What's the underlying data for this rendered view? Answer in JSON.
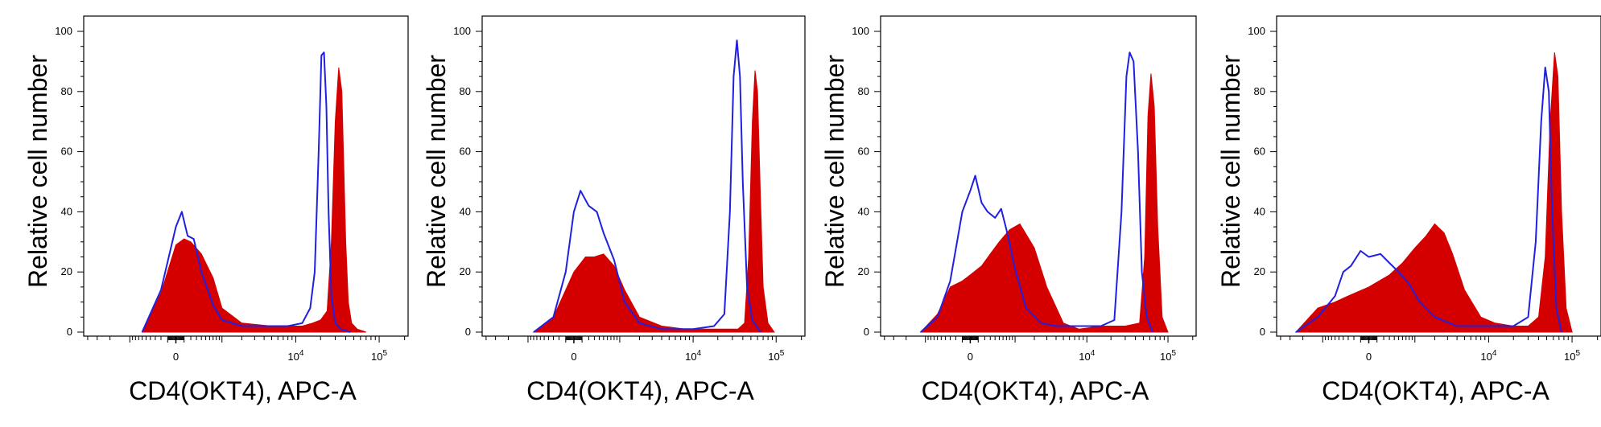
{
  "chart_data": [
    {
      "type": "area",
      "ylabel": "Relative cell number",
      "xlabel": "CD4(OKT4), APC-A",
      "x_scale": "biexponential",
      "yticks": [
        0,
        20,
        40,
        60,
        80,
        100
      ],
      "xticks": [
        {
          "label": "0",
          "value": 0
        },
        {
          "label": "10",
          "sup": "4",
          "value": 10000
        },
        {
          "label": "10",
          "sup": "5",
          "value": 100000
        }
      ],
      "ylim": [
        0,
        105
      ],
      "series": [
        {
          "color": "#d40000",
          "fill": true,
          "x": [
            -600,
            -200,
            0,
            100,
            200,
            400,
            700,
            1000,
            2000,
            5000,
            8000,
            12000,
            16000,
            20000,
            24000,
            27000,
            30000,
            33000,
            36000,
            38000,
            40000,
            43000,
            47000,
            55000,
            70000
          ],
          "y": [
            0,
            13,
            29,
            31,
            30,
            26,
            18,
            8,
            3,
            2,
            2,
            2,
            3,
            4,
            7,
            30,
            70,
            88,
            80,
            55,
            30,
            10,
            3,
            1,
            0
          ]
        },
        {
          "color": "#2020e0",
          "fill": false,
          "x": [
            -600,
            -200,
            0,
            70,
            150,
            250,
            400,
            700,
            1000,
            2000,
            5000,
            8000,
            12000,
            15000,
            17000,
            19000,
            20500,
            22000,
            23500,
            25000,
            27000,
            30000,
            35000,
            45000
          ],
          "y": [
            0,
            14,
            35,
            40,
            32,
            31,
            20,
            9,
            4,
            2,
            2,
            2,
            3,
            8,
            20,
            60,
            92,
            93,
            75,
            40,
            12,
            3,
            1,
            0
          ]
        }
      ]
    },
    {
      "type": "area",
      "ylabel": "Relative cell number",
      "xlabel": "CD4(OKT4), APC-A",
      "x_scale": "biexponential",
      "yticks": [
        0,
        20,
        40,
        60,
        80,
        100
      ],
      "xticks": [
        {
          "label": "0",
          "value": 0
        },
        {
          "label": "10",
          "sup": "4",
          "value": 10000
        },
        {
          "label": "10",
          "sup": "5",
          "value": 100000
        }
      ],
      "ylim": [
        0,
        105
      ],
      "series": [
        {
          "color": "#d40000",
          "fill": true,
          "x": [
            -800,
            -300,
            -100,
            0,
            150,
            300,
            500,
            800,
            1200,
            2000,
            4000,
            8000,
            15000,
            25000,
            35000,
            42000,
            47000,
            52000,
            56000,
            60000,
            65000,
            70000,
            80000,
            95000
          ],
          "y": [
            0,
            5,
            14,
            20,
            25,
            25,
            26,
            22,
            14,
            5,
            2,
            1,
            1,
            1,
            1,
            3,
            25,
            70,
            87,
            80,
            45,
            15,
            3,
            0
          ]
        },
        {
          "color": "#2020e0",
          "fill": false,
          "x": [
            -800,
            -300,
            -100,
            0,
            80,
            200,
            350,
            500,
            800,
            1200,
            2000,
            4000,
            10000,
            18000,
            24000,
            28000,
            31000,
            34000,
            37000,
            40000,
            45000,
            52000,
            65000
          ],
          "y": [
            0,
            5,
            20,
            40,
            47,
            42,
            40,
            33,
            24,
            10,
            3,
            1,
            1,
            2,
            6,
            40,
            85,
            97,
            85,
            50,
            15,
            4,
            0
          ]
        }
      ]
    },
    {
      "type": "area",
      "ylabel": "Relative cell number",
      "xlabel": "CD4(OKT4), APC-A",
      "x_scale": "biexponential",
      "yticks": [
        0,
        20,
        40,
        60,
        80,
        100
      ],
      "xticks": [
        {
          "label": "0",
          "value": 0
        },
        {
          "label": "10",
          "sup": "4",
          "value": 10000
        },
        {
          "label": "10",
          "sup": "5",
          "value": 100000
        }
      ],
      "ylim": [
        0,
        105
      ],
      "series": [
        {
          "color": "#d40000",
          "fill": true,
          "x": [
            -1200,
            -600,
            -300,
            -100,
            0,
            150,
            300,
            500,
            800,
            1200,
            2000,
            3000,
            5000,
            8000,
            15000,
            30000,
            45000,
            52000,
            57000,
            62000,
            68000,
            75000,
            85000,
            100000
          ],
          "y": [
            0,
            6,
            15,
            17,
            19,
            22,
            26,
            30,
            34,
            36,
            28,
            15,
            3,
            1,
            2,
            2,
            3,
            25,
            72,
            86,
            75,
            35,
            5,
            0
          ]
        },
        {
          "color": "#2020e0",
          "fill": false,
          "x": [
            -1200,
            -600,
            -300,
            -100,
            0,
            60,
            150,
            250,
            400,
            550,
            700,
            1000,
            1500,
            2500,
            4000,
            8000,
            15000,
            22000,
            27000,
            31000,
            34000,
            38000,
            43000,
            48000,
            55000,
            65000
          ],
          "y": [
            0,
            5,
            17,
            40,
            47,
            52,
            43,
            40,
            38,
            41,
            34,
            21,
            8,
            3,
            2,
            2,
            2,
            4,
            40,
            85,
            93,
            90,
            60,
            20,
            5,
            0
          ]
        }
      ]
    },
    {
      "type": "area",
      "ylabel": "Relative cell number",
      "xlabel": "CD4(OKT4), APC-A",
      "x_scale": "biexponential",
      "yticks": [
        0,
        20,
        40,
        60,
        80,
        100
      ],
      "xticks": [
        {
          "label": "0",
          "value": 0
        },
        {
          "label": "10",
          "sup": "4",
          "value": 10000
        },
        {
          "label": "10",
          "sup": "5",
          "value": 100000
        }
      ],
      "ylim": [
        0,
        105
      ],
      "series": [
        {
          "color": "#d40000",
          "fill": true,
          "x": [
            -2500,
            -1200,
            -600,
            -300,
            0,
            300,
            600,
            1000,
            1500,
            2000,
            2700,
            3500,
            5000,
            8000,
            12000,
            20000,
            30000,
            40000,
            48000,
            55000,
            62000,
            68000,
            75000,
            85000,
            100000
          ],
          "y": [
            0,
            8,
            10,
            12,
            15,
            19,
            23,
            28,
            32,
            36,
            33,
            26,
            14,
            5,
            3,
            2,
            2,
            5,
            25,
            70,
            93,
            85,
            40,
            8,
            0
          ]
        },
        {
          "color": "#2020e0",
          "fill": false,
          "x": [
            -2500,
            -1200,
            -600,
            -400,
            -250,
            -100,
            0,
            150,
            300,
            500,
            800,
            1200,
            2000,
            4000,
            10000,
            20000,
            30000,
            37000,
            43000,
            48000,
            53000,
            58000,
            65000,
            75000
          ],
          "y": [
            0,
            5,
            12,
            20,
            22,
            27,
            25,
            26,
            23,
            20,
            16,
            10,
            5,
            2,
            2,
            2,
            5,
            30,
            70,
            88,
            80,
            40,
            8,
            0
          ]
        }
      ]
    }
  ]
}
